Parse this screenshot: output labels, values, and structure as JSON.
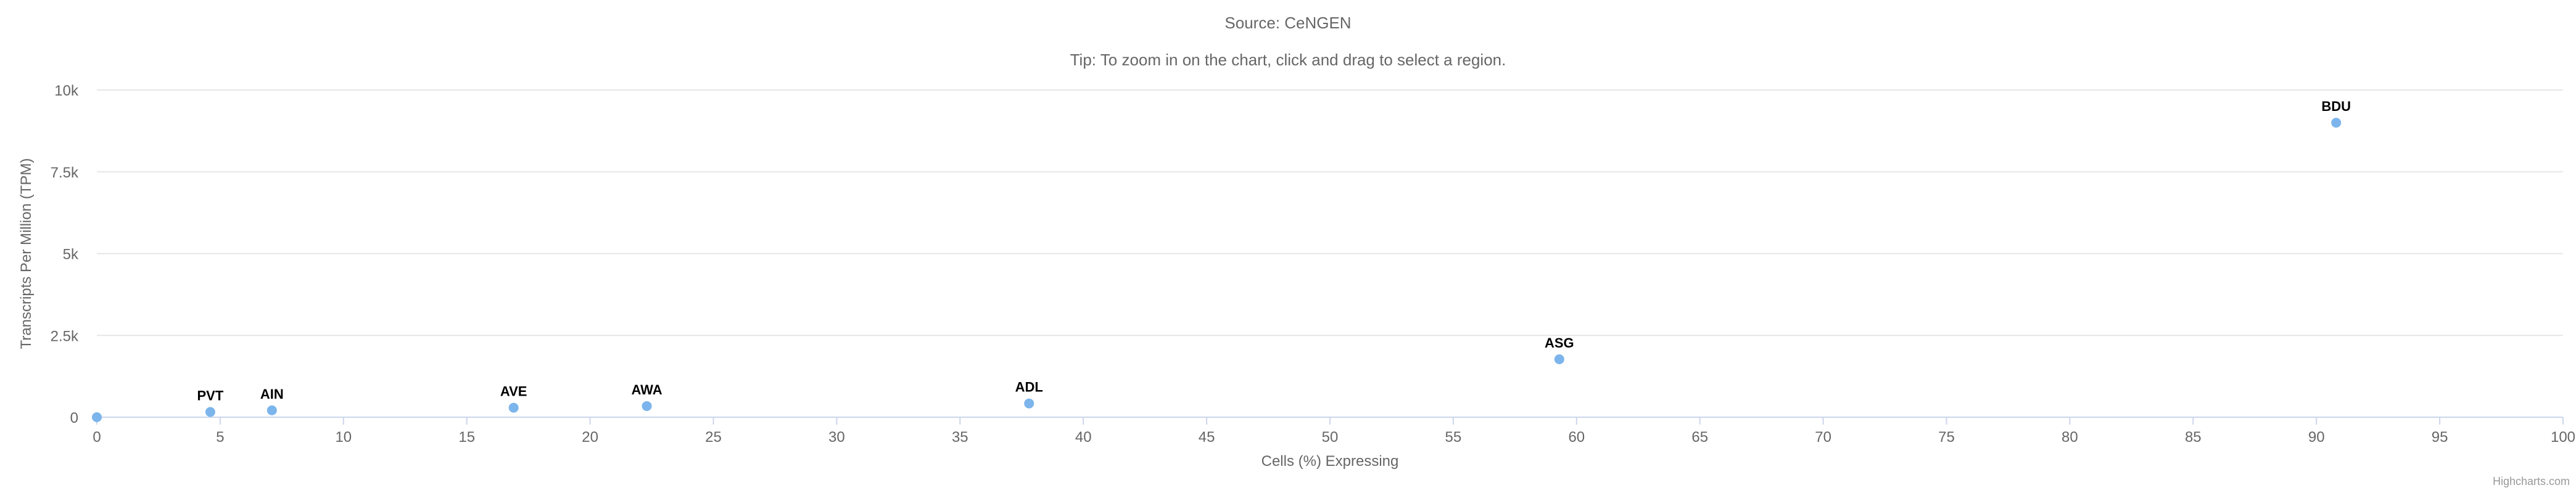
{
  "source_text": "Source: CeNGEN",
  "tip_text": "Tip: To zoom in on the chart, click and drag to select a region.",
  "credits": "Highcharts.com",
  "colors": {
    "point": "#7cb5ec",
    "grid": "#e6e6e6",
    "axis_line": "#ccd6eb",
    "axis_text": "#666666",
    "label_text": "#000000"
  },
  "chart_data": {
    "type": "scatter",
    "xlabel": "Cells (%) Expressing",
    "ylabel": "Transcripts Per Million (TPM)",
    "xlim": [
      0,
      100
    ],
    "ylim": [
      0,
      10000
    ],
    "x_ticks": [
      "0",
      "5",
      "10",
      "15",
      "20",
      "25",
      "30",
      "35",
      "40",
      "45",
      "50",
      "55",
      "60",
      "65",
      "70",
      "75",
      "80",
      "85",
      "90",
      "95",
      "100"
    ],
    "y_ticks": [
      "0",
      "2.5k",
      "5k",
      "7.5k",
      "10k"
    ],
    "grid": true,
    "points": [
      {
        "label": "",
        "x": 0,
        "y": 0
      },
      {
        "label": "PVT",
        "x": 4.6,
        "y": 160
      },
      {
        "label": "AIN",
        "x": 7.1,
        "y": 210
      },
      {
        "label": "AVE",
        "x": 16.9,
        "y": 290
      },
      {
        "label": "AWA",
        "x": 22.3,
        "y": 340
      },
      {
        "label": "ADL",
        "x": 37.8,
        "y": 420
      },
      {
        "label": "ASG",
        "x": 59.3,
        "y": 1770
      },
      {
        "label": "BDU",
        "x": 90.8,
        "y": 9000
      }
    ]
  }
}
